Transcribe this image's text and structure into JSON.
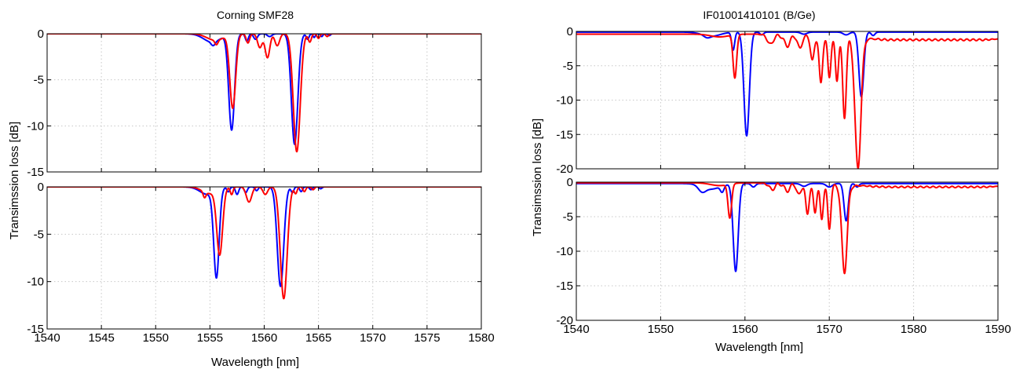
{
  "figure": {
    "left_title": "Corning SMF28",
    "right_title": "IF01001410101 (B/Ge)",
    "left_ylabel": "Transimssion loss [dB]",
    "right_ylabel": "Transimssion loss [dB]",
    "left_xlabel": "Wavelength [nm]",
    "right_xlabel": "Wavelength [nm]"
  },
  "colors": {
    "series_a": "#0000ff",
    "series_b": "#ff0000",
    "grid": "#c8c8c8"
  },
  "chart_data": [
    {
      "type": "line",
      "title": "Corning SMF28",
      "xlabel": "",
      "ylabel": "Transimssion loss [dB]",
      "xlim": [
        1540,
        1580
      ],
      "ylim": [
        -15,
        0
      ],
      "xticks": [
        1540,
        1545,
        1550,
        1555,
        1560,
        1565,
        1570,
        1575,
        1580
      ],
      "yticks": [
        0,
        -5,
        -10,
        -15
      ],
      "xticklabels_shown": false,
      "grid": true,
      "series": [
        {
          "color": "#0000ff",
          "baseline": 0,
          "dips": [
            [
              1555.3,
              0.4,
              0.25
            ],
            [
              1557.0,
              10.4,
              0.38
            ],
            [
              1558.4,
              0.8,
              0.2
            ],
            [
              1559.2,
              0.6,
              0.25
            ],
            [
              1560.5,
              0.3,
              0.3
            ],
            [
              1562.8,
              12.0,
              0.42
            ],
            [
              1564.0,
              0.6,
              0.18
            ],
            [
              1564.6,
              0.4,
              0.15
            ],
            [
              1565.3,
              0.3,
              0.15
            ],
            [
              1566.0,
              0.2,
              0.15
            ]
          ],
          "broad": [
            [
              1555.2,
              0.9,
              1.1
            ]
          ]
        },
        {
          "color": "#ff0000",
          "baseline": 0,
          "dips": [
            [
              1555.6,
              0.5,
              0.2
            ],
            [
              1557.1,
              8.0,
              0.38
            ],
            [
              1558.5,
              1.0,
              0.22
            ],
            [
              1559.6,
              1.5,
              0.3
            ],
            [
              1560.3,
              2.6,
              0.3
            ],
            [
              1561.2,
              1.3,
              0.3
            ],
            [
              1563.0,
              12.8,
              0.45
            ],
            [
              1564.2,
              0.9,
              0.2
            ],
            [
              1565.0,
              0.5,
              0.18
            ],
            [
              1565.8,
              0.3,
              0.18
            ]
          ],
          "broad": [
            [
              1555.5,
              0.7,
              1.1
            ]
          ]
        }
      ]
    },
    {
      "type": "line",
      "title": "",
      "xlabel": "Wavelength [nm]",
      "ylabel": "Transimssion loss [dB]",
      "xlim": [
        1540,
        1580
      ],
      "ylim": [
        -15,
        0
      ],
      "xticks": [
        1540,
        1545,
        1550,
        1555,
        1560,
        1565,
        1570,
        1575,
        1580
      ],
      "yticks": [
        0,
        -5,
        -10,
        -15
      ],
      "xticklabels_shown": true,
      "grid": true,
      "series": [
        {
          "color": "#0000ff",
          "baseline": 0,
          "dips": [
            [
              1555.6,
              9.2,
              0.35
            ],
            [
              1556.7,
              0.5,
              0.18
            ],
            [
              1557.5,
              0.8,
              0.2
            ],
            [
              1558.3,
              0.6,
              0.2
            ],
            [
              1559.3,
              0.4,
              0.2
            ],
            [
              1561.5,
              10.5,
              0.42
            ],
            [
              1562.6,
              0.6,
              0.18
            ],
            [
              1563.4,
              0.5,
              0.18
            ],
            [
              1564.3,
              0.3,
              0.18
            ],
            [
              1565.2,
              0.2,
              0.18
            ]
          ],
          "broad": [
            [
              1554.8,
              0.8,
              1.0
            ]
          ]
        },
        {
          "color": "#ff0000",
          "baseline": 0,
          "dips": [
            [
              1554.5,
              0.6,
              0.18
            ],
            [
              1555.9,
              6.9,
              0.38
            ],
            [
              1557.0,
              0.8,
              0.18
            ],
            [
              1558.6,
              1.6,
              0.35
            ],
            [
              1560.1,
              0.8,
              0.3
            ],
            [
              1561.8,
              11.8,
              0.45
            ],
            [
              1562.9,
              0.7,
              0.18
            ],
            [
              1563.7,
              0.5,
              0.18
            ],
            [
              1564.5,
              0.3,
              0.18
            ]
          ],
          "broad": [
            [
              1555.0,
              0.7,
              1.0
            ]
          ]
        }
      ]
    },
    {
      "type": "line",
      "title": "IF01001410101 (B/Ge)",
      "xlabel": "",
      "ylabel": "Transimssion loss [dB]",
      "xlim": [
        1540,
        1590
      ],
      "ylim": [
        -20,
        0
      ],
      "xticks": [
        1540,
        1550,
        1560,
        1570,
        1580,
        1590
      ],
      "yticks": [
        0,
        -5,
        -10,
        -15,
        -20
      ],
      "xticklabels_shown": false,
      "grid": true,
      "series": [
        {
          "color": "#0000ff",
          "baseline": -0.1,
          "dips": [
            [
              1555.5,
              0.3,
              0.5
            ],
            [
              1558.6,
              2.6,
              0.25
            ],
            [
              1560.2,
              15.1,
              0.45
            ],
            [
              1562.0,
              0.4,
              0.3
            ],
            [
              1567.0,
              0.3,
              0.5
            ],
            [
              1572.0,
              0.4,
              0.5
            ],
            [
              1573.8,
              9.4,
              0.4
            ],
            [
              1575.2,
              0.5,
              0.3
            ]
          ],
          "broad": [
            [
              1556.0,
              0.6,
              1.5
            ]
          ]
        },
        {
          "color": "#ff0000",
          "baseline": -0.4,
          "end_value": -1.1,
          "ripple": {
            "from": 1561.5,
            "to": 1575.5,
            "amplitude": 0.45,
            "period": 0.85
          },
          "ripple_tail": {
            "from": 1574.5,
            "to": 1590,
            "amplitude": 0.25,
            "period": 0.75
          },
          "dips": [
            [
              1558.8,
              6.3,
              0.3
            ],
            [
              1563.0,
              1.3,
              0.45
            ],
            [
              1565.0,
              1.5,
              0.45
            ],
            [
              1566.5,
              1.8,
              0.35
            ],
            [
              1568.0,
              3.5,
              0.3
            ],
            [
              1569.0,
              6.8,
              0.28
            ],
            [
              1570.0,
              5.8,
              0.26
            ],
            [
              1570.9,
              6.2,
              0.26
            ],
            [
              1571.8,
              11.5,
              0.3
            ],
            [
              1573.4,
              18.8,
              0.5
            ]
          ],
          "broad": [
            [
              1557.0,
              0.4,
              1.5
            ]
          ]
        }
      ]
    },
    {
      "type": "line",
      "title": "",
      "xlabel": "Wavelength [nm]",
      "ylabel": "Transimssion loss [dB]",
      "xlim": [
        1540,
        1590
      ],
      "ylim": [
        -20,
        0
      ],
      "xticks": [
        1540,
        1550,
        1560,
        1570,
        1580,
        1590
      ],
      "yticks": [
        0,
        -5,
        -10,
        -15,
        -20
      ],
      "xticklabels_shown": true,
      "grid": true,
      "series": [
        {
          "color": "#0000ff",
          "baseline": -0.2,
          "dips": [
            [
              1554.9,
              0.8,
              0.6
            ],
            [
              1557.3,
              0.9,
              0.3
            ],
            [
              1558.9,
              12.7,
              0.42
            ],
            [
              1561.0,
              0.5,
              0.35
            ],
            [
              1567.0,
              0.4,
              0.5
            ],
            [
              1570.0,
              0.5,
              0.5
            ],
            [
              1572.0,
              5.4,
              0.35
            ],
            [
              1573.3,
              0.5,
              0.3
            ]
          ],
          "broad": [
            [
              1556.0,
              0.8,
              1.5
            ]
          ]
        },
        {
          "color": "#ff0000",
          "baseline": -0.1,
          "end_value": -0.6,
          "ripple": {
            "from": 1561.5,
            "to": 1574.0,
            "amplitude": 0.4,
            "period": 0.85
          },
          "ripple_tail": {
            "from": 1573.5,
            "to": 1590,
            "amplitude": 0.2,
            "period": 0.75
          },
          "dips": [
            [
              1558.2,
              4.9,
              0.3
            ],
            [
              1563.2,
              0.8,
              0.4
            ],
            [
              1565.0,
              1.0,
              0.4
            ],
            [
              1566.4,
              1.5,
              0.35
            ],
            [
              1567.4,
              4.3,
              0.28
            ],
            [
              1568.3,
              4.0,
              0.26
            ],
            [
              1569.1,
              5.0,
              0.25
            ],
            [
              1570.0,
              6.3,
              0.26
            ],
            [
              1571.8,
              12.5,
              0.45
            ]
          ],
          "broad": [
            [
              1557.0,
              0.4,
              1.5
            ]
          ]
        }
      ]
    }
  ]
}
